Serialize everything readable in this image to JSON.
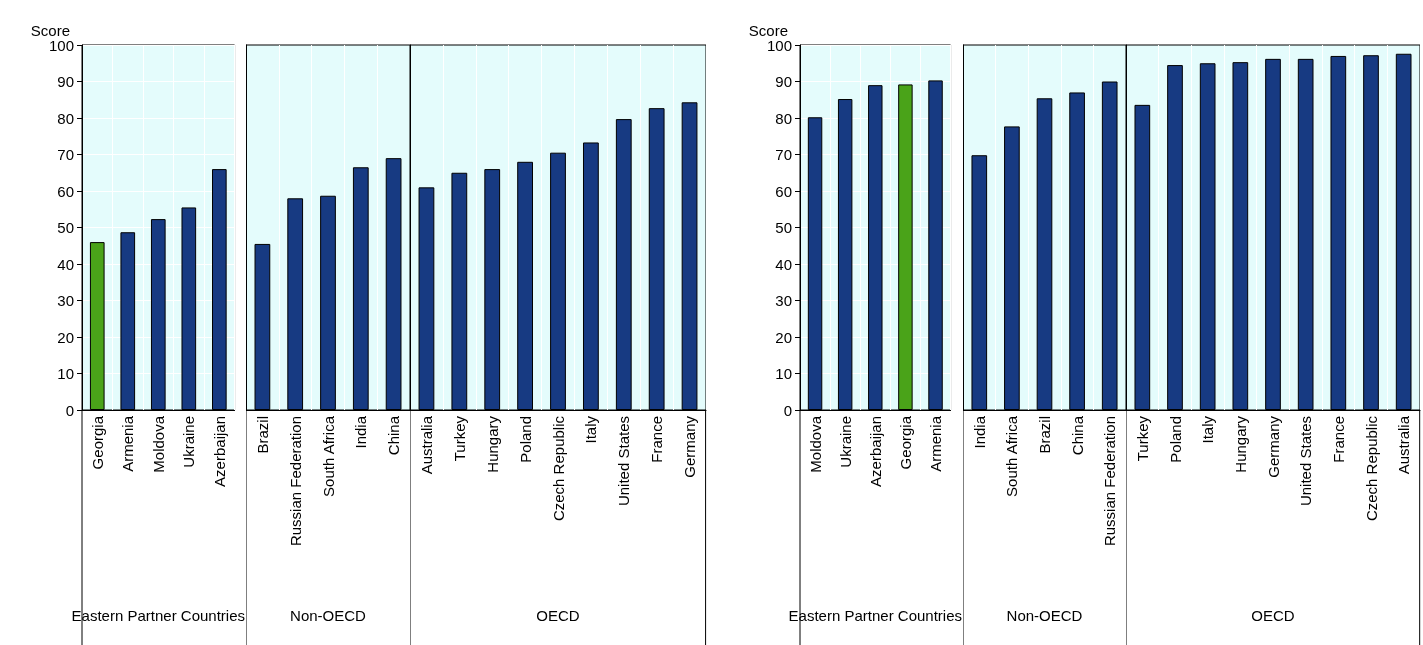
{
  "chart_data": [
    {
      "type": "bar",
      "ylabel": "Score",
      "xlabel": "Eastern Partner Countries",
      "categories": [
        "Georgia",
        "Armenia",
        "Moldova",
        "Ukraine",
        "Azerbaijan"
      ],
      "values": [
        46,
        48.7,
        52.3,
        55.5,
        66
      ],
      "colors": [
        "#4aa319",
        "#173a82",
        "#173a82",
        "#173a82",
        "#173a82"
      ],
      "ylim": [
        0,
        100
      ],
      "yticks": [
        0,
        10,
        20,
        30,
        40,
        50,
        60,
        70,
        80,
        90,
        100
      ],
      "grid": true
    },
    {
      "type": "bar",
      "xlabel": "Non-OECD",
      "categories": [
        "Brazil",
        "Russian Federation",
        "South Africa",
        "India",
        "China"
      ],
      "values": [
        45.5,
        58,
        58.7,
        66.5,
        69
      ],
      "colors": [
        "#173a82",
        "#173a82",
        "#173a82",
        "#173a82",
        "#173a82"
      ],
      "ylim": [
        0,
        100
      ],
      "grid": true,
      "tick_labels": "x"
    },
    {
      "type": "bar",
      "xlabel": "OECD",
      "categories": [
        "Australia",
        "Turkey",
        "Hungary",
        "Poland",
        "Czech Republic",
        "Italy",
        "United States",
        "France",
        "Germany"
      ],
      "values": [
        61,
        65,
        66,
        68,
        70.5,
        73.3,
        79.7,
        82.7,
        84.3
      ],
      "colors": [
        "#173a82",
        "#173a82",
        "#173a82",
        "#173a82",
        "#173a82",
        "#173a82",
        "#173a82",
        "#173a82",
        "#173a82"
      ],
      "ylim": [
        0,
        100
      ],
      "grid": true,
      "tick_labels": "x"
    },
    {
      "type": "bar",
      "ylabel": "Score",
      "xlabel": "Eastern Partner Countries",
      "categories": [
        "Moldova",
        "Ukraine",
        "Azerbaijan",
        "Georgia",
        "Armenia"
      ],
      "values": [
        80.2,
        85.2,
        89,
        89.2,
        90.3
      ],
      "colors": [
        "#173a82",
        "#173a82",
        "#173a82",
        "#4aa319",
        "#173a82"
      ],
      "ylim": [
        0,
        100
      ],
      "yticks": [
        0,
        10,
        20,
        30,
        40,
        50,
        60,
        70,
        80,
        90,
        100
      ],
      "grid": true
    },
    {
      "type": "bar",
      "xlabel": "Non-OECD",
      "categories": [
        "India",
        "South Africa",
        "Brazil",
        "China",
        "Russian Federation"
      ],
      "values": [
        69.8,
        77.7,
        85.4,
        87,
        90
      ],
      "colors": [
        "#173a82",
        "#173a82",
        "#173a82",
        "#173a82",
        "#173a82"
      ],
      "ylim": [
        0,
        100
      ],
      "grid": true,
      "tick_labels": "x"
    },
    {
      "type": "bar",
      "xlabel": "OECD",
      "categories": [
        "Turkey",
        "Poland",
        "Italy",
        "Hungary",
        "Germany",
        "United States",
        "France",
        "Czech Republic",
        "Australia"
      ],
      "values": [
        83.6,
        94.5,
        95,
        95.3,
        96.2,
        96.2,
        97,
        97.2,
        97.6
      ],
      "colors": [
        "#173a82",
        "#173a82",
        "#173a82",
        "#173a82",
        "#173a82",
        "#173a82",
        "#173a82",
        "#173a82",
        "#173a82"
      ],
      "ylim": [
        0,
        100
      ],
      "grid": true,
      "tick_labels": "x"
    }
  ]
}
